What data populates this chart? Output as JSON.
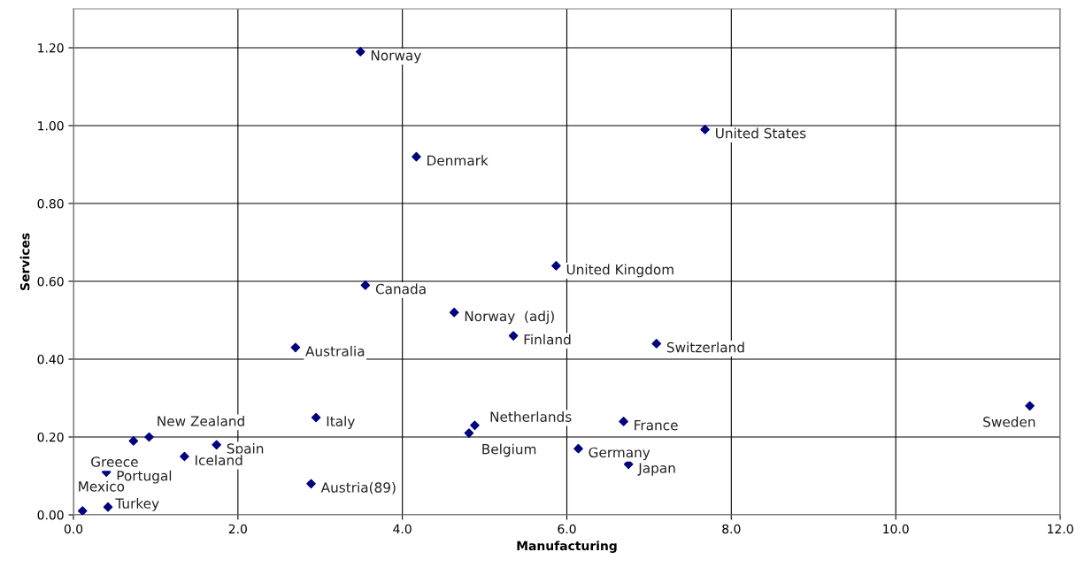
{
  "chart_data": {
    "type": "scatter",
    "xlabel": "Manufacturing",
    "ylabel": "Services",
    "marker": "diamond",
    "grid": true,
    "color": "#000080",
    "x": [
      3.49,
      7.68,
      4.17,
      5.87,
      3.55,
      4.63,
      5.35,
      7.09,
      2.7,
      2.95,
      4.88,
      4.81,
      6.69,
      6.14,
      6.75,
      11.63,
      0.92,
      0.73,
      1.74,
      1.35,
      0.4,
      2.89,
      0.42,
      0.11
    ],
    "values": [
      1.19,
      0.99,
      0.92,
      0.64,
      0.59,
      0.52,
      0.46,
      0.44,
      0.43,
      0.25,
      0.23,
      0.21,
      0.24,
      0.17,
      0.13,
      0.28,
      0.2,
      0.19,
      0.18,
      0.15,
      0.11,
      0.08,
      0.02,
      0.01
    ],
    "annotations": [
      {
        "text": "Norway",
        "x": 3.49,
        "y": 1.19
      },
      {
        "text": "United States",
        "x": 7.68,
        "y": 0.99
      },
      {
        "text": "Denmark",
        "x": 4.17,
        "y": 0.92
      },
      {
        "text": "United Kingdom",
        "x": 5.87,
        "y": 0.64
      },
      {
        "text": "Canada",
        "x": 3.55,
        "y": 0.59
      },
      {
        "text": "Norway  (adj)",
        "x": 4.63,
        "y": 0.52
      },
      {
        "text": "Finland",
        "x": 5.35,
        "y": 0.46
      },
      {
        "text": "Switzerland",
        "x": 7.09,
        "y": 0.44
      },
      {
        "text": "Australia",
        "x": 2.7,
        "y": 0.43
      },
      {
        "text": "Italy",
        "x": 2.95,
        "y": 0.25
      },
      {
        "text": "Netherlands",
        "x": 4.88,
        "y": 0.23
      },
      {
        "text": "Belgium",
        "x": 4.81,
        "y": 0.21
      },
      {
        "text": "France",
        "x": 6.69,
        "y": 0.24
      },
      {
        "text": "Germany",
        "x": 6.14,
        "y": 0.17
      },
      {
        "text": "Japan",
        "x": 6.75,
        "y": 0.13
      },
      {
        "text": "Sweden",
        "x": 11.63,
        "y": 0.28
      },
      {
        "text": "New Zealand",
        "x": 0.92,
        "y": 0.2
      },
      {
        "text": "Greece",
        "x": 0.73,
        "y": 0.19
      },
      {
        "text": "Spain",
        "x": 1.74,
        "y": 0.18
      },
      {
        "text": "Iceland",
        "x": 1.35,
        "y": 0.15
      },
      {
        "text": "Portugal",
        "x": 0.4,
        "y": 0.11
      },
      {
        "text": "Austria(89)",
        "x": 2.89,
        "y": 0.08
      },
      {
        "text": "Turkey",
        "x": 0.42,
        "y": 0.02
      },
      {
        "text": "Mexico",
        "x": 0.11,
        "y": 0.01
      }
    ],
    "xlim": [
      0,
      12
    ],
    "xticks": [
      {
        "value": 0,
        "label": "0.0"
      },
      {
        "value": 2,
        "label": "2.0"
      },
      {
        "value": 4,
        "label": "4.0"
      },
      {
        "value": 6,
        "label": "6.0"
      },
      {
        "value": 8,
        "label": "8.0"
      },
      {
        "value": 10,
        "label": "10.0"
      },
      {
        "value": 12,
        "label": "12.0"
      }
    ],
    "ylim": [
      0,
      1.3
    ],
    "yticks": [
      {
        "value": 0,
        "label": "0.00"
      },
      {
        "value": 0.2,
        "label": "0.20"
      },
      {
        "value": 0.4,
        "label": "0.40"
      },
      {
        "value": 0.6,
        "label": "0.60"
      },
      {
        "value": 0.8,
        "label": "0.80"
      },
      {
        "value": 1.0,
        "label": "1.00"
      },
      {
        "value": 1.2,
        "label": "1.20"
      }
    ]
  }
}
